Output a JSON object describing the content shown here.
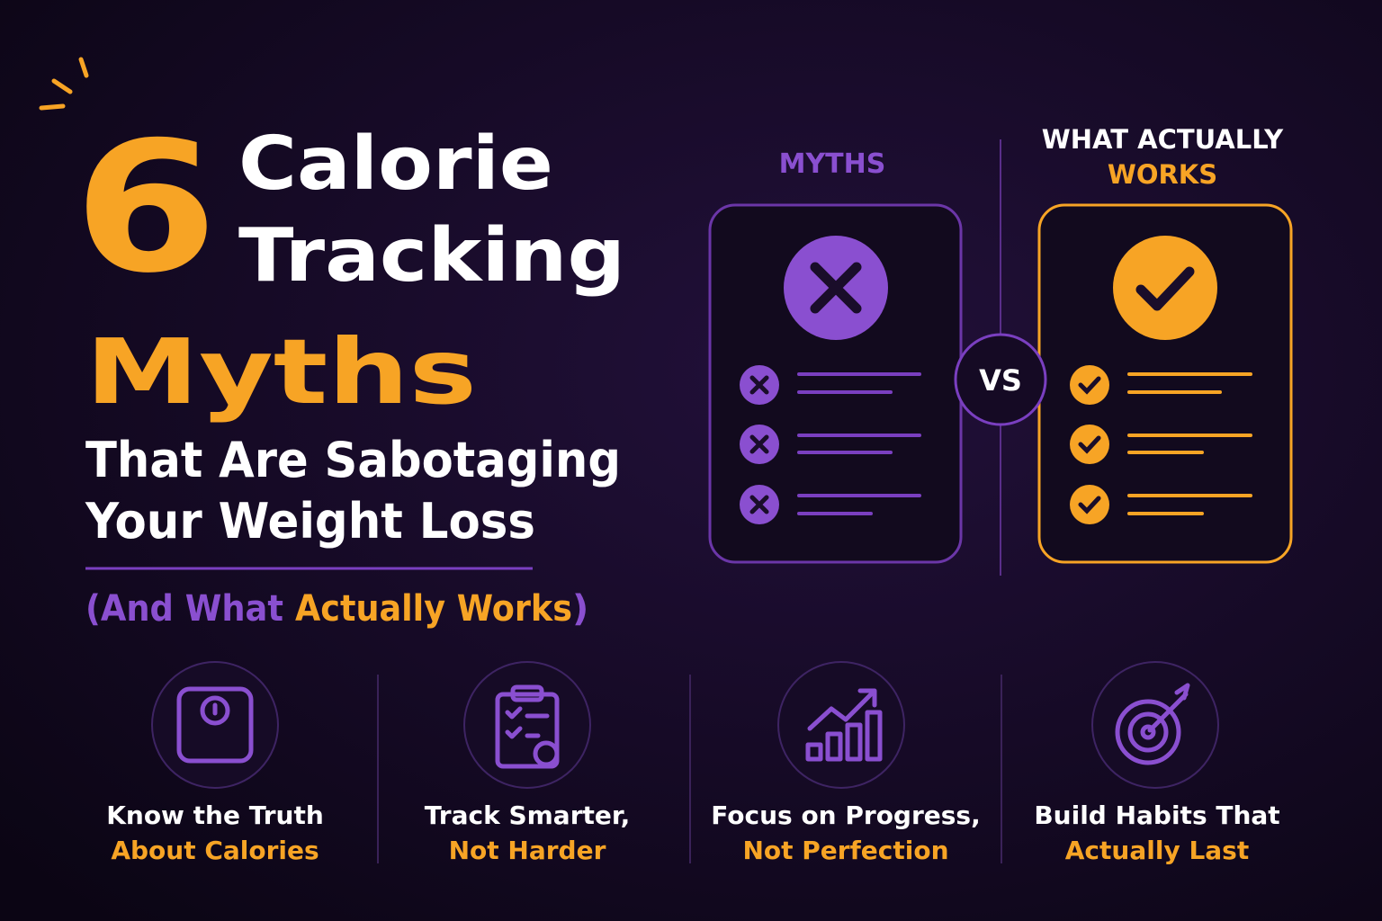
{
  "headline": {
    "number": "6",
    "line1": "Calorie",
    "line2": "Tracking",
    "line3": "Myths",
    "subtitle1": "That Are Sabotaging",
    "subtitle2": "Your Weight Loss"
  },
  "tagline": {
    "part1": "(And What",
    "part2": "Actually Works",
    "part3": ")"
  },
  "comparison": {
    "myths_label": "MYTHS",
    "works_label1": "WHAT ACTUALLY",
    "works_label2": "WORKS",
    "vs": "VS"
  },
  "features": [
    {
      "line1": "Know the Truth",
      "line2": "About Calories"
    },
    {
      "line1": "Track Smarter,",
      "line2": "Not Harder"
    },
    {
      "line1": "Focus on Progress,",
      "line2": "Not Perfection"
    },
    {
      "line1": "Build Habits That",
      "line2": "Actually Last"
    }
  ]
}
